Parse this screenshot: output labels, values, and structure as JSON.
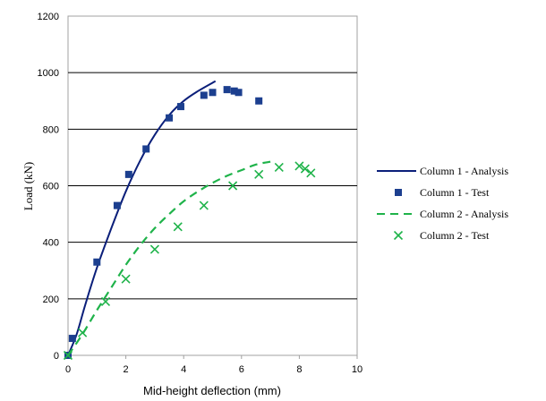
{
  "chart_data": {
    "type": "scatter",
    "title": "",
    "xlabel": "Mid-height deflection (mm)",
    "ylabel": "Load (kN)",
    "xlim": [
      0,
      10
    ],
    "ylim": [
      0,
      1200
    ],
    "x_ticks": [
      0,
      2,
      4,
      6,
      8,
      10
    ],
    "y_ticks": [
      0,
      200,
      400,
      600,
      800,
      1000,
      1200
    ],
    "grid": "horizontal",
    "legend_position": "right",
    "series": [
      {
        "name": "Column 1 - Analysis",
        "kind": "line",
        "style": "solid",
        "color": "#0b1f7a",
        "points": [
          [
            0,
            0
          ],
          [
            0.3,
            75
          ],
          [
            0.6,
            180
          ],
          [
            1.0,
            310
          ],
          [
            1.5,
            450
          ],
          [
            2.0,
            580
          ],
          [
            2.5,
            690
          ],
          [
            3.0,
            780
          ],
          [
            3.5,
            850
          ],
          [
            4.0,
            900
          ],
          [
            4.5,
            935
          ],
          [
            5.1,
            970
          ]
        ]
      },
      {
        "name": "Column 1 - Test",
        "kind": "markers",
        "marker": "square",
        "color": "#1c3f8f",
        "points": [
          [
            0,
            0
          ],
          [
            0.15,
            60
          ],
          [
            1.0,
            330
          ],
          [
            1.7,
            530
          ],
          [
            2.1,
            640
          ],
          [
            2.7,
            730
          ],
          [
            3.5,
            840
          ],
          [
            3.9,
            880
          ],
          [
            4.7,
            920
          ],
          [
            5.0,
            930
          ],
          [
            5.5,
            940
          ],
          [
            5.75,
            935
          ],
          [
            5.9,
            930
          ],
          [
            6.6,
            900
          ]
        ]
      },
      {
        "name": "Column 2 - Analysis",
        "kind": "line",
        "style": "dashed",
        "color": "#1fb34a",
        "points": [
          [
            0,
            0
          ],
          [
            0.5,
            75
          ],
          [
            1.0,
            160
          ],
          [
            1.5,
            240
          ],
          [
            2.0,
            320
          ],
          [
            2.5,
            390
          ],
          [
            3.0,
            450
          ],
          [
            3.5,
            500
          ],
          [
            4.0,
            545
          ],
          [
            4.5,
            580
          ],
          [
            5.0,
            610
          ],
          [
            5.5,
            635
          ],
          [
            6.0,
            655
          ],
          [
            6.5,
            675
          ],
          [
            7.0,
            685
          ]
        ]
      },
      {
        "name": "Column 2 - Test",
        "kind": "markers",
        "marker": "x",
        "color": "#1fb34a",
        "points": [
          [
            0,
            0
          ],
          [
            0.5,
            80
          ],
          [
            1.3,
            190
          ],
          [
            2.0,
            270
          ],
          [
            3.0,
            375
          ],
          [
            3.8,
            455
          ],
          [
            4.7,
            530
          ],
          [
            5.7,
            600
          ],
          [
            6.6,
            640
          ],
          [
            7.3,
            665
          ],
          [
            8.0,
            670
          ],
          [
            8.2,
            660
          ],
          [
            8.4,
            645
          ]
        ]
      }
    ]
  }
}
